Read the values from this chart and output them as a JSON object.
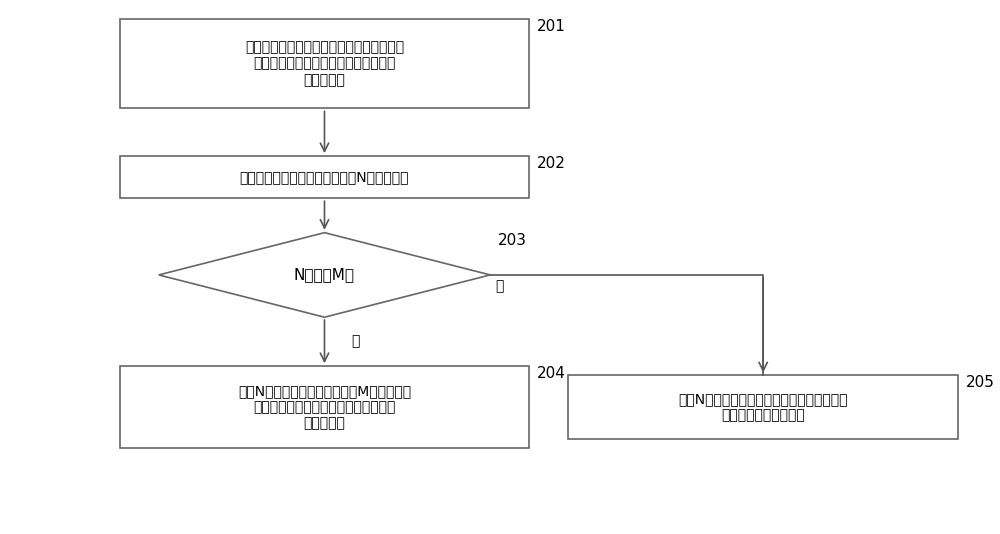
{
  "bg_color": "#ffffff",
  "box_edge_color": "#666666",
  "arrow_color": "#555555",
  "text_color": "#000000",
  "label_color": "#000000",
  "step_labels": {
    "201": "201",
    "202": "202",
    "203": "203",
    "204": "204",
    "205": "205"
  },
  "box1_text": "获取污染物在计时时长内的不同时间的排放\n浓度，计时时长为计时起始时刻至目标\n时刻的时间",
  "box2_text": "按照预设步长将计时时长划分为N个检测时长",
  "diamond_text": "N是否比M大",
  "box4_text": "确定N个检测时长内的连续的后M个检测时长\n内的排放浓度对目标检测时长内贡献的\n污染物浓度",
  "box5_text": "确定N个检测时长内的排放浓度对目标检测时\n长内贡献的污染物浓度",
  "yes_label": "是",
  "no_label": "否"
}
